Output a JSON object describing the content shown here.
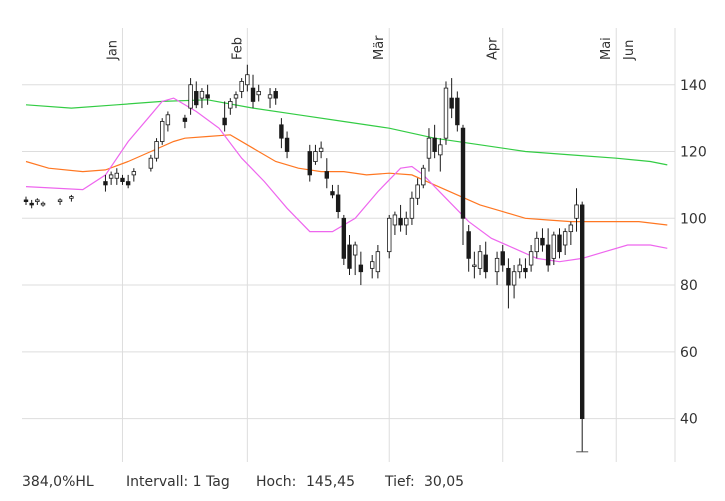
{
  "chart_data": {
    "type": "candlestick",
    "x_labels": [
      "Jan",
      "Feb",
      "Mär",
      "Apr",
      "Mai",
      "Jun"
    ],
    "y_ticks": [
      40,
      60,
      80,
      100,
      120,
      140
    ],
    "ylim": [
      27,
      157
    ],
    "grid": true,
    "colors": {
      "candle": "#1a1a1a",
      "ma_short": "#ee66ee",
      "ma_mid": "#ff7722",
      "ma_long": "#33cc44",
      "grid": "#dddddd"
    },
    "candles": [
      [
        105.5,
        106.5,
        104,
        105
      ],
      [
        104.5,
        105.5,
        103,
        104
      ],
      [
        105,
        106,
        104,
        105.5
      ],
      [
        104,
        105,
        103.5,
        104.5
      ],
      [
        105,
        106,
        104,
        105.5
      ],
      [
        106,
        107,
        105,
        106.5
      ],
      [
        111,
        113,
        108,
        110
      ],
      [
        112,
        114,
        110,
        113
      ],
      [
        112,
        115,
        110,
        113.5
      ],
      [
        112,
        113,
        110,
        111
      ],
      [
        111,
        113,
        109,
        110
      ],
      [
        113,
        115,
        111,
        114
      ],
      [
        115,
        119,
        114,
        118
      ],
      [
        118,
        124,
        117,
        123
      ],
      [
        123,
        130,
        122,
        129
      ],
      [
        128,
        132,
        126,
        131
      ],
      [
        130,
        131,
        127,
        129
      ],
      [
        133,
        142,
        131,
        140
      ],
      [
        138,
        141,
        133,
        134
      ],
      [
        136,
        139,
        133,
        138
      ],
      [
        137,
        140,
        134,
        136
      ],
      [
        130,
        135,
        126,
        128
      ],
      [
        133,
        136,
        131,
        135
      ],
      [
        136,
        138,
        133,
        137
      ],
      [
        138,
        142,
        136,
        141
      ],
      [
        140,
        146,
        138,
        143
      ],
      [
        139,
        143,
        133,
        135
      ],
      [
        137,
        140,
        135,
        138
      ],
      [
        136,
        139,
        133,
        137
      ],
      [
        138,
        139,
        134,
        136
      ],
      [
        128,
        130,
        121,
        124
      ],
      [
        124,
        126,
        118,
        120
      ],
      [
        120,
        122,
        111,
        113
      ],
      [
        117,
        122,
        116,
        120
      ],
      [
        120,
        123,
        118,
        121
      ],
      [
        114,
        118,
        109,
        112
      ],
      [
        108,
        110,
        106,
        107
      ],
      [
        107,
        110,
        100,
        102
      ],
      [
        100,
        101,
        86,
        88
      ],
      [
        92,
        95,
        83,
        85
      ],
      [
        89,
        93,
        83,
        92
      ],
      [
        86,
        90,
        80,
        84
      ],
      [
        85,
        89,
        82,
        87
      ],
      [
        84,
        92,
        82,
        90
      ],
      [
        90,
        101,
        88,
        100
      ],
      [
        98,
        102,
        95,
        101
      ],
      [
        100,
        104,
        96,
        98
      ],
      [
        98,
        102,
        95,
        100
      ],
      [
        100,
        108,
        98,
        106
      ],
      [
        106,
        112,
        104,
        110
      ],
      [
        110,
        116,
        109,
        115
      ],
      [
        118,
        127,
        114,
        124
      ],
      [
        124,
        128,
        118,
        120
      ],
      [
        119,
        124,
        114,
        122
      ],
      [
        124,
        141,
        122,
        139
      ],
      [
        136,
        142,
        130,
        133
      ],
      [
        136,
        138,
        126,
        128
      ],
      [
        127,
        128,
        92,
        100
      ],
      [
        96,
        98,
        84,
        88
      ],
      [
        86,
        90,
        82,
        86
      ],
      [
        85,
        92,
        83,
        90
      ],
      [
        89,
        93,
        82,
        84
      ],
      [
        84,
        90,
        80,
        88
      ],
      [
        90,
        92,
        84,
        86
      ],
      [
        85,
        88,
        73,
        80
      ],
      [
        80,
        86,
        76,
        84
      ],
      [
        84,
        88,
        82,
        86
      ],
      [
        85,
        88,
        82,
        84
      ],
      [
        86,
        92,
        84,
        90
      ],
      [
        90,
        96,
        88,
        94
      ],
      [
        94,
        97,
        90,
        92
      ],
      [
        92,
        97,
        84,
        86
      ],
      [
        88,
        96,
        86,
        95
      ],
      [
        95,
        97,
        88,
        90
      ],
      [
        92,
        97,
        89,
        96
      ],
      [
        96,
        99,
        92,
        98
      ],
      [
        100,
        109,
        96,
        104
      ],
      [
        104,
        105,
        30.05,
        40
      ]
    ],
    "ma_short": [
      [
        0,
        109.5
      ],
      [
        10,
        108.6
      ],
      [
        14,
        113
      ],
      [
        18,
        123
      ],
      [
        22,
        131
      ],
      [
        24,
        135
      ],
      [
        26,
        136
      ],
      [
        30,
        132
      ],
      [
        34,
        127
      ],
      [
        38,
        118
      ],
      [
        42,
        111
      ],
      [
        46,
        103
      ],
      [
        50,
        96
      ],
      [
        54,
        96
      ],
      [
        58,
        100
      ],
      [
        62,
        108
      ],
      [
        66,
        115
      ],
      [
        68,
        115.5
      ],
      [
        70,
        113
      ],
      [
        74,
        106
      ],
      [
        78,
        99
      ],
      [
        82,
        94
      ],
      [
        86,
        91
      ],
      [
        90,
        88
      ],
      [
        94,
        87
      ],
      [
        98,
        88
      ],
      [
        102,
        90
      ],
      [
        106,
        92
      ],
      [
        110,
        92
      ],
      [
        113,
        91
      ]
    ],
    "ma_mid": [
      [
        0,
        117
      ],
      [
        4,
        115
      ],
      [
        10,
        114
      ],
      [
        14,
        114.5
      ],
      [
        18,
        117
      ],
      [
        22,
        120
      ],
      [
        26,
        123
      ],
      [
        28,
        124
      ],
      [
        32,
        124.5
      ],
      [
        36,
        125
      ],
      [
        40,
        121
      ],
      [
        44,
        117
      ],
      [
        48,
        115
      ],
      [
        52,
        114
      ],
      [
        56,
        114
      ],
      [
        60,
        113
      ],
      [
        64,
        113.5
      ],
      [
        68,
        113
      ],
      [
        72,
        110
      ],
      [
        76,
        107
      ],
      [
        80,
        104
      ],
      [
        84,
        102
      ],
      [
        88,
        100
      ],
      [
        92,
        99.5
      ],
      [
        96,
        99
      ],
      [
        100,
        99
      ],
      [
        104,
        99
      ],
      [
        108,
        99
      ],
      [
        113,
        98
      ]
    ],
    "ma_long": [
      [
        0,
        134
      ],
      [
        8,
        133
      ],
      [
        16,
        134
      ],
      [
        24,
        135
      ],
      [
        32,
        135.5
      ],
      [
        40,
        133
      ],
      [
        48,
        131
      ],
      [
        56,
        129
      ],
      [
        64,
        127
      ],
      [
        72,
        124
      ],
      [
        80,
        122
      ],
      [
        88,
        120
      ],
      [
        96,
        119
      ],
      [
        104,
        118
      ],
      [
        110,
        117
      ],
      [
        113,
        116
      ]
    ],
    "candle_positions": [
      0,
      1,
      2,
      3,
      6,
      8,
      14,
      15,
      16,
      17,
      18,
      19,
      22,
      23,
      24,
      25,
      28,
      29,
      30,
      31,
      32,
      35,
      36,
      37,
      38,
      39,
      40,
      41,
      43,
      44,
      45,
      46,
      50,
      51,
      52,
      53,
      54,
      55,
      56,
      57,
      58,
      59,
      61,
      62,
      64,
      65,
      66,
      67,
      68,
      69,
      70,
      71,
      72,
      73,
      74,
      75,
      76,
      77,
      78,
      79,
      80,
      81,
      83,
      84,
      85,
      86,
      87,
      88,
      89,
      90,
      91,
      92,
      93,
      94,
      95,
      96,
      97,
      98
    ]
  },
  "footer": {
    "scale": "384,0%HL",
    "interval": "Intervall: 1 Tag",
    "high_label": "Hoch:",
    "high_value": "145,45",
    "low_label": "Tief:",
    "low_value": "30,05"
  }
}
